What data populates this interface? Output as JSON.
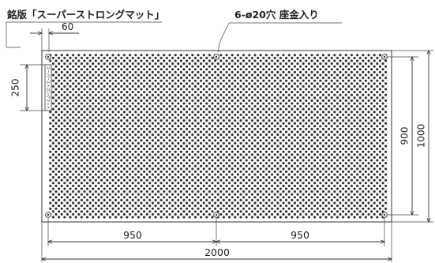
{
  "labels": {
    "nameplate": "銘版「スーパーストロングマット」",
    "holes": "6-ø20穴 座金入り",
    "plate_text": "スーパーストロングマット"
  },
  "dimensions": {
    "nameplate_offset": "60",
    "nameplate_length": "250",
    "left_span": "950",
    "right_span": "950",
    "overall_width": "2000",
    "hole_pitch_vertical": "900",
    "overall_height": "1000"
  },
  "colors": {
    "line": "#333333",
    "perforation": "#2a2a2a",
    "background": "#ffffff"
  }
}
